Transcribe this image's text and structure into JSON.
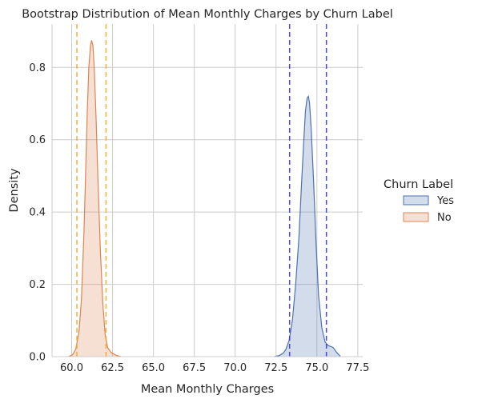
{
  "chart_data": {
    "type": "area",
    "title": "Bootstrap Distribution of Mean Monthly Charges by Churn Label",
    "xlabel": "Mean Monthly Charges",
    "ylabel": "Density",
    "xlim": [
      58.8,
      77.8
    ],
    "ylim": [
      0,
      0.92
    ],
    "xticks": [
      "60.0",
      "62.5",
      "65.0",
      "67.5",
      "70.0",
      "72.5",
      "75.0",
      "77.5"
    ],
    "yticks": [
      "0.0",
      "0.2",
      "0.4",
      "0.6",
      "0.8"
    ],
    "grid": true,
    "legend": {
      "title": "Churn Label",
      "placement": "right",
      "entries": [
        "Yes",
        "No"
      ]
    },
    "series": [
      {
        "name": "Yes",
        "color": "#4c72b0",
        "x": [
          72.4,
          72.7,
          72.95,
          73.1,
          73.3,
          73.5,
          73.7,
          73.9,
          74.05,
          74.2,
          74.3,
          74.4,
          74.48,
          74.55,
          74.65,
          74.8,
          74.95,
          75.1,
          75.3,
          75.5,
          75.7,
          75.85,
          76.0,
          76.2,
          76.45
        ],
        "y": [
          0.0,
          0.003,
          0.01,
          0.02,
          0.045,
          0.1,
          0.2,
          0.33,
          0.47,
          0.6,
          0.68,
          0.715,
          0.72,
          0.7,
          0.63,
          0.48,
          0.31,
          0.17,
          0.08,
          0.04,
          0.03,
          0.028,
          0.025,
          0.012,
          0.0
        ]
      },
      {
        "name": "No",
        "color": "#dd8452",
        "x": [
          59.8,
          60.05,
          60.25,
          60.45,
          60.6,
          60.75,
          60.85,
          60.95,
          61.05,
          61.15,
          61.22,
          61.3,
          61.38,
          61.5,
          61.6,
          61.75,
          61.9,
          62.05,
          62.2,
          62.4,
          62.7,
          63.0
        ],
        "y": [
          0.0,
          0.005,
          0.02,
          0.07,
          0.16,
          0.34,
          0.5,
          0.67,
          0.8,
          0.86,
          0.875,
          0.86,
          0.8,
          0.65,
          0.5,
          0.3,
          0.15,
          0.06,
          0.025,
          0.012,
          0.004,
          0.0
        ]
      }
    ],
    "reference_lines": [
      {
        "series": "Yes",
        "x": 73.33,
        "color": "#3333ee",
        "style": "dashed"
      },
      {
        "series": "Yes",
        "x": 75.58,
        "color": "#3333ee",
        "style": "dashed"
      },
      {
        "series": "No",
        "x": 60.32,
        "color": "#f5a623",
        "style": "dashed"
      },
      {
        "series": "No",
        "x": 62.1,
        "color": "#f5a623",
        "style": "dashed"
      }
    ]
  }
}
